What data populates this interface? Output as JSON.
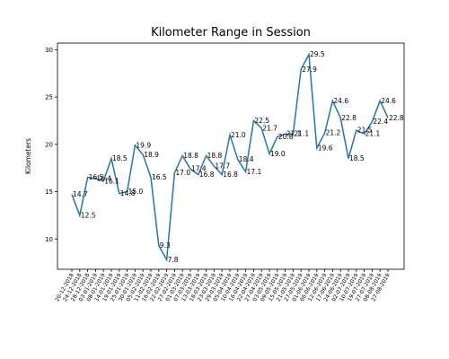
{
  "chart_data": {
    "type": "line",
    "title": "Kilometer Range in Session",
    "y_label": "Kilometers",
    "categories": [
      "20-12-2018",
      "24-12-2018",
      "28-12-2018",
      "03-01-2019",
      "08-01-2019",
      "14-01-2019",
      "19-01-2019",
      "25-01-2019",
      "30-01-2019",
      "05-02-2019",
      "11-02-2019",
      "16-02-2019",
      "22-02-2019",
      "27-02-2019",
      "01-03-2019",
      "07-03-2019",
      "13-03-2019",
      "18-03-2019",
      "23-03-2019",
      "29-03-2019",
      "05-04-2019",
      "10-04-2019",
      "16-04-2019",
      "22-04-2019",
      "27-04-2019",
      "03-05-2019",
      "09-05-2019",
      "15-05-2019",
      "21-05-2019",
      "27-05-2019",
      "01-06-2019",
      "06-06-2019",
      "12-06-2019",
      "17-06-2019",
      "24-06-2019",
      "02-07-2019",
      "10-07-2019",
      "19-07-2019",
      "27-07-2019",
      "08-08-2019",
      "27-08-2019"
    ],
    "values": [
      14.7,
      12.5,
      16.5,
      16.4,
      16.1,
      18.5,
      14.8,
      15.0,
      19.9,
      18.9,
      16.5,
      9.3,
      7.8,
      17.0,
      18.8,
      17.4,
      16.8,
      18.8,
      17.7,
      16.8,
      21.0,
      18.4,
      17.1,
      22.5,
      21.7,
      19.0,
      20.8,
      21.1,
      21.1,
      27.9,
      29.5,
      19.6,
      21.2,
      24.6,
      22.8,
      18.5,
      21.5,
      21.1,
      22.4,
      24.6,
      22.8
    ],
    "value_labels": [
      "14.7",
      "12.5",
      "16.5",
      "16.4",
      "16.1",
      "18.5",
      "14.8",
      "15.0",
      "19.9",
      "18.9",
      "16.5",
      "9.3",
      "7.8",
      "17.0",
      "18.8",
      "17.4",
      "16.8",
      "18.8",
      "17.7",
      "16.8",
      "21.0",
      "18.4",
      "17.1",
      "22.5",
      "21.7",
      "19.0",
      "20.8",
      "21.1",
      "21.1",
      "27.9",
      "29.5",
      "19.6",
      "21.2",
      "24.6",
      "22.8",
      "18.5",
      "21.5",
      "21.1",
      "22.4",
      "24.6",
      "22.8"
    ],
    "color": "#1f77b4",
    "ylim": [
      6.8,
      30.7
    ],
    "yticks": [
      10,
      15,
      20,
      25,
      30
    ]
  }
}
